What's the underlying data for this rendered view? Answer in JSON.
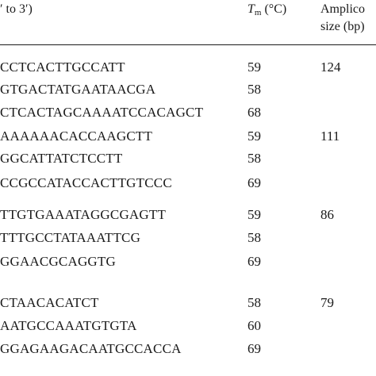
{
  "header": {
    "seq_col": "′ to 3′)",
    "tm_letter": "T",
    "tm_sub": "m",
    "tm_unit": "(°C)",
    "amp_line1": "Amplico",
    "amp_line2": "size (bp)"
  },
  "rows": [
    {
      "seq": "CCTCACTTGCCATT",
      "tm": "59",
      "amp": "124"
    },
    {
      "seq": "GTGACTATGAATAACGA",
      "tm": "58",
      "amp": ""
    },
    {
      "seq": "CTCACTAGCAAAATCCACAGCT",
      "tm": "68",
      "amp": ""
    },
    {
      "seq": "AAAAAACACCAAGCTT",
      "tm": "59",
      "amp": "111"
    },
    {
      "seq": "GGCATTATCTCCTT",
      "tm": "58",
      "amp": ""
    },
    {
      "seq": "CCGCCATACCACTTGTCCC",
      "tm": "69",
      "amp": ""
    },
    {
      "seq": "TTGTGAAATAGGCGAGTT",
      "tm": "59",
      "amp": "86"
    },
    {
      "seq": "TTTGCCTATAAATTCG",
      "tm": "58",
      "amp": ""
    },
    {
      "seq": "GGAACGCAGGTG",
      "tm": "69",
      "amp": ""
    },
    {
      "seq": "CTAACACATCT",
      "tm": "58",
      "amp": "79"
    },
    {
      "seq": "AATGCCAAATGTGTA",
      "tm": "60",
      "amp": ""
    },
    {
      "seq": "GGAGAAGACAATGCCACCA",
      "tm": "69",
      "amp": ""
    }
  ]
}
